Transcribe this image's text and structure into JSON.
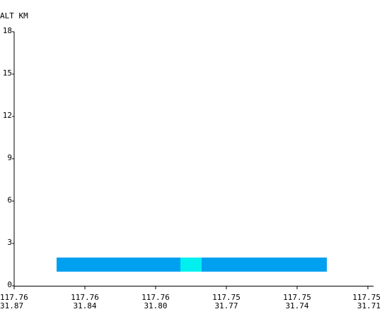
{
  "y_axis": {
    "title": "ALT KM",
    "ticks": [
      "18",
      "15",
      "12",
      "9",
      "6",
      "3",
      "0"
    ]
  },
  "x_axis": {
    "ticks": [
      {
        "lon": "117.76",
        "lat": "31.87"
      },
      {
        "lon": "117.76",
        "lat": "31.84"
      },
      {
        "lon": "117.76",
        "lat": "31.80"
      },
      {
        "lon": "117.75",
        "lat": "31.77"
      },
      {
        "lon": "117.75",
        "lat": "31.74"
      },
      {
        "lon": "117.75",
        "lat": "31.71"
      }
    ]
  },
  "chart_data": {
    "type": "heatmap",
    "ylabel": "ALT KM",
    "ylim": [
      0,
      18
    ],
    "x_tick_labels_lon": [
      "117.76",
      "117.76",
      "117.76",
      "117.75",
      "117.75",
      "117.75"
    ],
    "x_tick_labels_lat": [
      "31.87",
      "31.84",
      "31.80",
      "31.77",
      "31.74",
      "31.71"
    ],
    "grid": false,
    "bands": [
      {
        "x_from_tick": 0.6,
        "x_to_tick": 2.35,
        "alt_from_km": 1.0,
        "alt_to_km": 2.0,
        "color": "#00a0f0"
      },
      {
        "x_from_tick": 2.35,
        "x_to_tick": 2.65,
        "alt_from_km": 1.0,
        "alt_to_km": 2.0,
        "color": "#00f0f0"
      },
      {
        "x_from_tick": 2.65,
        "x_to_tick": 4.42,
        "alt_from_km": 1.0,
        "alt_to_km": 2.0,
        "color": "#00a0f0"
      }
    ]
  }
}
